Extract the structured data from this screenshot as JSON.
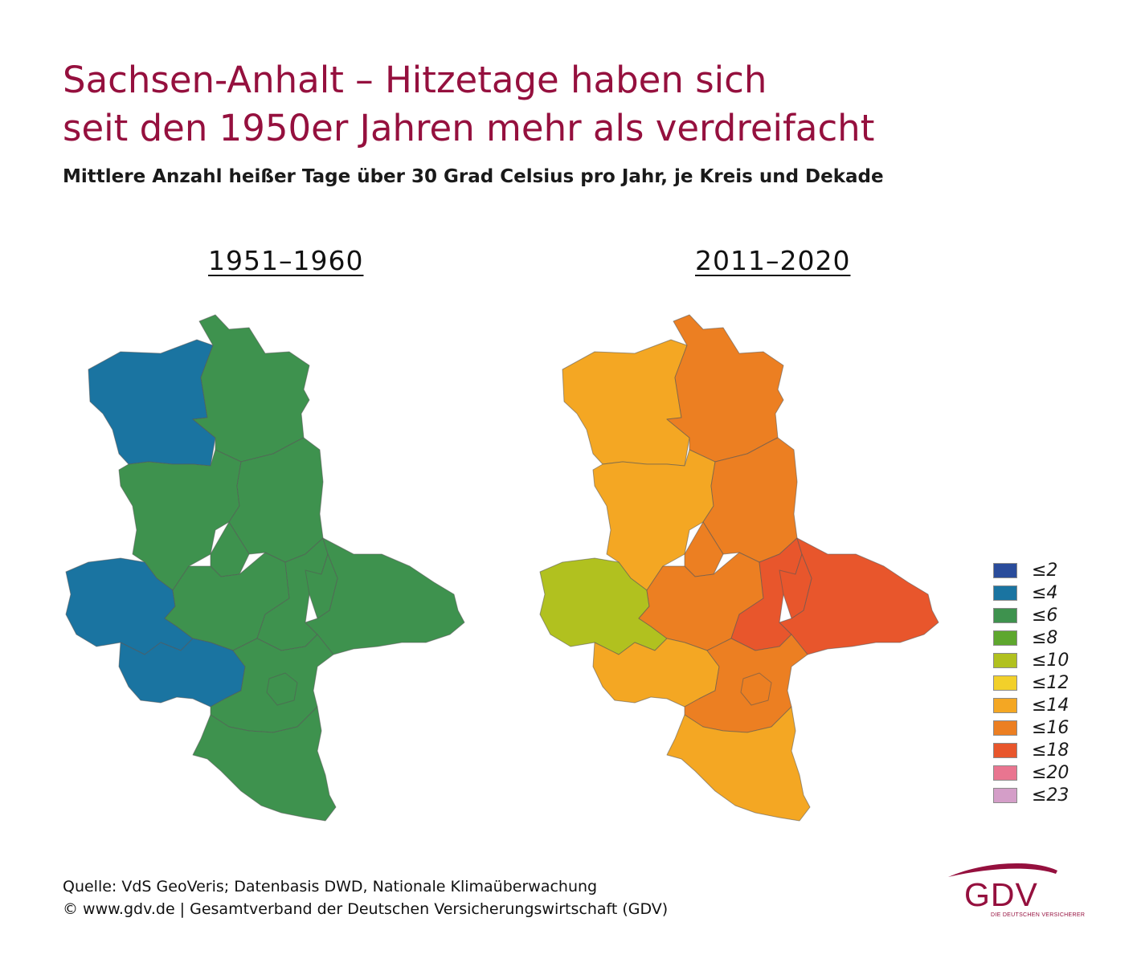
{
  "title": {
    "line1": "Sachsen-Anhalt – Hitzetage haben sich",
    "line2": "seit den 1950er Jahren mehr als verdreifacht"
  },
  "subtitle": "Mittlere Anzahl heißer Tage über 30 Grad Celsius pro Jahr, je Kreis und Dekade",
  "maps": [
    {
      "period": "1951–1960",
      "regions": [
        {
          "id": "altmarkkreis-salzwedel",
          "class": "≤4",
          "color": "#1a74a1"
        },
        {
          "id": "stendal",
          "class": "≤6",
          "color": "#3e924e"
        },
        {
          "id": "boerde",
          "class": "≤6",
          "color": "#3e924e"
        },
        {
          "id": "jerichower-land",
          "class": "≤6",
          "color": "#3e924e"
        },
        {
          "id": "magdeburg",
          "class": "≤6",
          "color": "#3e924e"
        },
        {
          "id": "harz",
          "class": "≤4",
          "color": "#1a74a1"
        },
        {
          "id": "salzlandkreis",
          "class": "≤6",
          "color": "#3e924e"
        },
        {
          "id": "anhalt-bitterfeld",
          "class": "≤6",
          "color": "#3e924e"
        },
        {
          "id": "wittenberg",
          "class": "≤6",
          "color": "#3e924e"
        },
        {
          "id": "dessau-rosslau",
          "class": "≤6",
          "color": "#3e924e"
        },
        {
          "id": "mansfeld-suedharz",
          "class": "≤4",
          "color": "#1a74a1"
        },
        {
          "id": "saalekreis",
          "class": "≤6",
          "color": "#3e924e"
        },
        {
          "id": "halle",
          "class": "≤6",
          "color": "#3e924e"
        },
        {
          "id": "burgenlandkreis",
          "class": "≤6",
          "color": "#3e924e"
        }
      ]
    },
    {
      "period": "2011–2020",
      "regions": [
        {
          "id": "altmarkkreis-salzwedel",
          "class": "≤14",
          "color": "#f4a723"
        },
        {
          "id": "stendal",
          "class": "≤16",
          "color": "#ec7f22"
        },
        {
          "id": "boerde",
          "class": "≤14",
          "color": "#f4a723"
        },
        {
          "id": "jerichower-land",
          "class": "≤16",
          "color": "#ec7f22"
        },
        {
          "id": "magdeburg",
          "class": "≤16",
          "color": "#ec7f22"
        },
        {
          "id": "harz",
          "class": "≤10",
          "color": "#b1c11f"
        },
        {
          "id": "salzlandkreis",
          "class": "≤16",
          "color": "#ec7f22"
        },
        {
          "id": "anhalt-bitterfeld",
          "class": "≤18",
          "color": "#e8562c"
        },
        {
          "id": "wittenberg",
          "class": "≤18",
          "color": "#e8562c"
        },
        {
          "id": "dessau-rosslau",
          "class": "≤18",
          "color": "#e8562c"
        },
        {
          "id": "mansfeld-suedharz",
          "class": "≤14",
          "color": "#f4a723"
        },
        {
          "id": "saalekreis",
          "class": "≤16",
          "color": "#ec7f22"
        },
        {
          "id": "halle",
          "class": "≤16",
          "color": "#ec7f22"
        },
        {
          "id": "burgenlandkreis",
          "class": "≤14",
          "color": "#f4a723"
        }
      ]
    }
  ],
  "legend": [
    {
      "label": "≤2",
      "color": "#2a4c9b"
    },
    {
      "label": "≤4",
      "color": "#1a74a1"
    },
    {
      "label": "≤6",
      "color": "#3e924e"
    },
    {
      "label": "≤8",
      "color": "#5ea72e"
    },
    {
      "label": "≤10",
      "color": "#b1c11f"
    },
    {
      "label": "≤12",
      "color": "#f2d02a"
    },
    {
      "label": "≤14",
      "color": "#f4a723"
    },
    {
      "label": "≤16",
      "color": "#ec7f22"
    },
    {
      "label": "≤18",
      "color": "#e8562c"
    },
    {
      "label": "≤20",
      "color": "#e97590"
    },
    {
      "label": "≤23",
      "color": "#d49ec8"
    }
  ],
  "source": {
    "line1": "Quelle: VdS GeoVeris; Datenbasis DWD, Nationale Klimaüberwachung",
    "line2": "© www.gdv.de | Gesamtverband der Deutschen Versicherungswirtschaft (GDV)"
  },
  "logo": {
    "text": "GDV",
    "subtext": "DIE DEUTSCHEN VERSICHERER",
    "color": "#95103e"
  }
}
